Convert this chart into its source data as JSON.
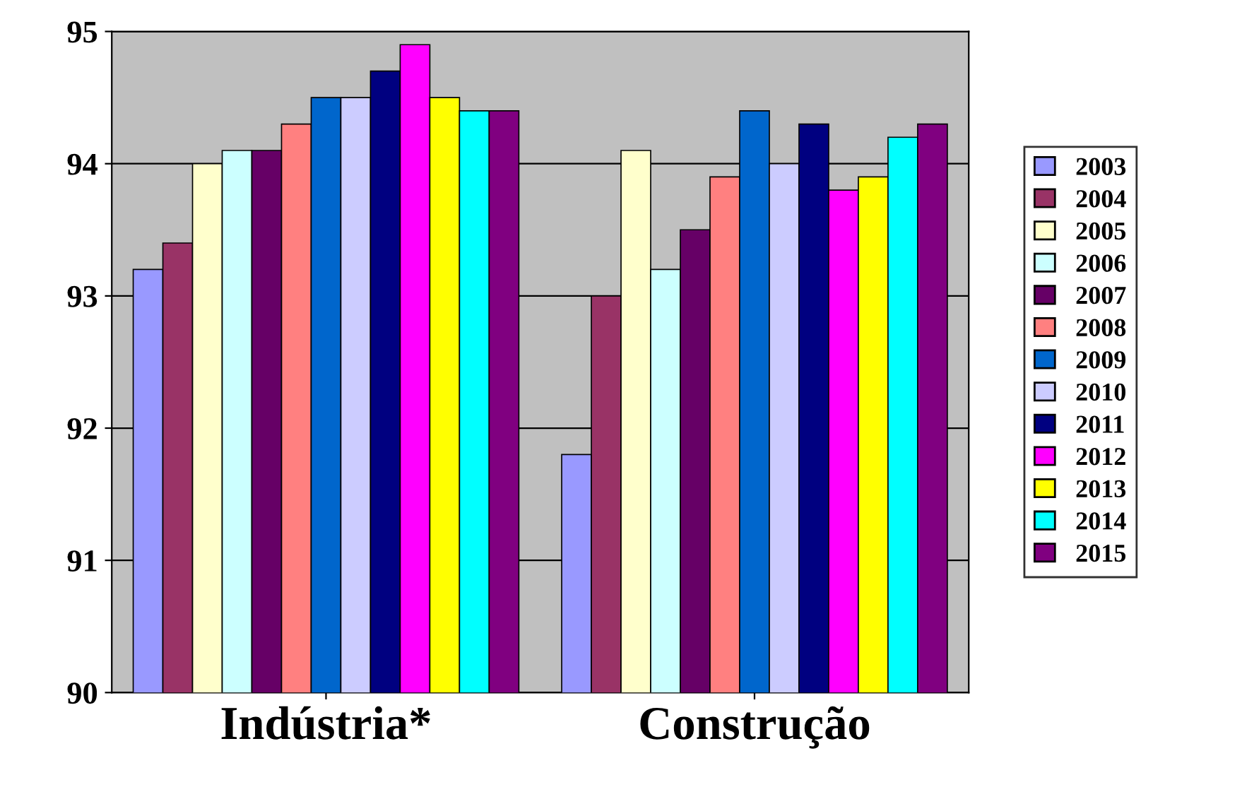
{
  "chart_data": {
    "type": "bar",
    "categories": [
      "Indústria*",
      "Construção"
    ],
    "series": [
      {
        "name": "2003",
        "color": "#9999ff",
        "values": [
          93.2,
          91.8
        ]
      },
      {
        "name": "2004",
        "color": "#993366",
        "values": [
          93.4,
          93.0
        ]
      },
      {
        "name": "2005",
        "color": "#ffffcc",
        "values": [
          94.0,
          94.1
        ]
      },
      {
        "name": "2006",
        "color": "#ccffff",
        "values": [
          94.1,
          93.2
        ]
      },
      {
        "name": "2007",
        "color": "#660066",
        "values": [
          94.1,
          93.5
        ]
      },
      {
        "name": "2008",
        "color": "#ff8080",
        "values": [
          94.3,
          93.9
        ]
      },
      {
        "name": "2009",
        "color": "#0066cc",
        "values": [
          94.5,
          94.4
        ]
      },
      {
        "name": "2010",
        "color": "#ccccff",
        "values": [
          94.5,
          94.0
        ]
      },
      {
        "name": "2011",
        "color": "#000080",
        "values": [
          94.7,
          94.3
        ]
      },
      {
        "name": "2012",
        "color": "#ff00ff",
        "values": [
          94.9,
          93.8
        ]
      },
      {
        "name": "2013",
        "color": "#ffff00",
        "values": [
          94.5,
          93.9
        ]
      },
      {
        "name": "2014",
        "color": "#00ffff",
        "values": [
          94.4,
          94.2
        ]
      },
      {
        "name": "2015",
        "color": "#800080",
        "values": [
          94.4,
          94.3
        ]
      }
    ],
    "ylim": [
      90,
      95
    ],
    "yticks": [
      90,
      91,
      92,
      93,
      94,
      95
    ],
    "grid": "y",
    "legend": "right"
  }
}
